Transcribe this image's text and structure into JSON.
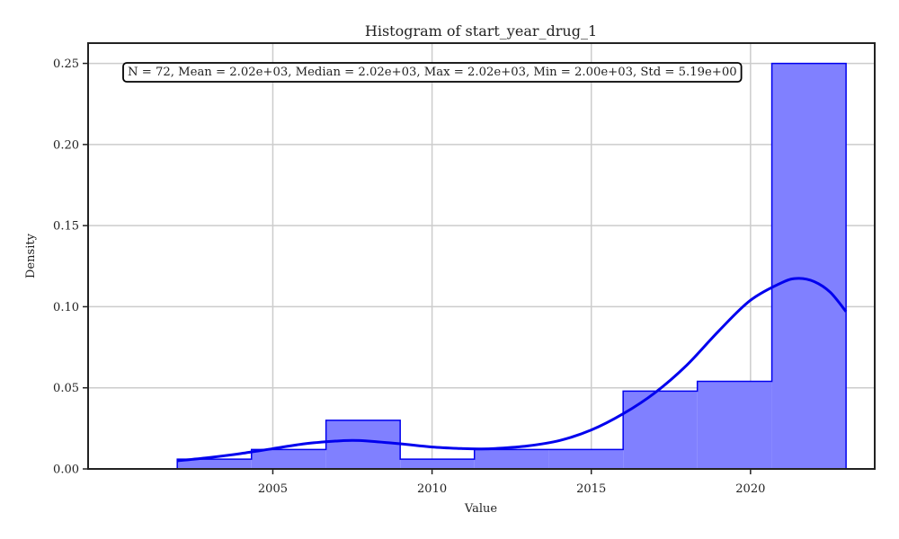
{
  "chart_data": {
    "type": "histogram",
    "title": "Histogram of start_year_drug_1",
    "xlabel": "Value",
    "ylabel": "Density",
    "annotation": "N = 72, Mean = 2.02e+03, Median = 2.02e+03, Max = 2.02e+03, Min = 2.00e+03, Std = 5.19e+00",
    "xlim": [
      1999.2,
      2023.9
    ],
    "ylim": [
      0,
      0.2625
    ],
    "xticks": [
      2005,
      2010,
      2015,
      2020
    ],
    "yticks": [
      0.0,
      0.05,
      0.1,
      0.15,
      0.2,
      0.25
    ],
    "grid": true,
    "bins": [
      {
        "x0": 2002.0,
        "x1": 2004.33,
        "density": 0.006
      },
      {
        "x0": 2004.33,
        "x1": 2006.67,
        "density": 0.012
      },
      {
        "x0": 2006.67,
        "x1": 2009.0,
        "density": 0.03
      },
      {
        "x0": 2009.0,
        "x1": 2011.33,
        "density": 0.006
      },
      {
        "x0": 2011.33,
        "x1": 2013.67,
        "density": 0.012
      },
      {
        "x0": 2013.67,
        "x1": 2016.0,
        "density": 0.012
      },
      {
        "x0": 2016.0,
        "x1": 2018.33,
        "density": 0.048
      },
      {
        "x0": 2018.33,
        "x1": 2020.67,
        "density": 0.054
      },
      {
        "x0": 2020.67,
        "x1": 2023.0,
        "density": 0.25
      }
    ],
    "kde": {
      "x": [
        2002.0,
        2003.0,
        2004.0,
        2005.0,
        2006.0,
        2007.0,
        2007.5,
        2008.0,
        2009.0,
        2010.0,
        2011.0,
        2011.5,
        2012.0,
        2013.0,
        2014.0,
        2015.0,
        2016.0,
        2017.0,
        2018.0,
        2019.0,
        2020.0,
        2021.0,
        2021.5,
        2022.0,
        2022.5,
        2023.0
      ],
      "y": [
        0.005,
        0.007,
        0.0095,
        0.0125,
        0.0155,
        0.0172,
        0.0176,
        0.0172,
        0.0155,
        0.0135,
        0.0125,
        0.0123,
        0.0126,
        0.0142,
        0.0175,
        0.024,
        0.034,
        0.047,
        0.064,
        0.085,
        0.104,
        0.115,
        0.1175,
        0.1155,
        0.109,
        0.097
      ]
    },
    "colors": {
      "bar_fill": "#8080ff",
      "bar_edge": "#0000ee",
      "kde_line": "#0000ee",
      "grid": "#cccccc",
      "axes": "#222222"
    }
  }
}
